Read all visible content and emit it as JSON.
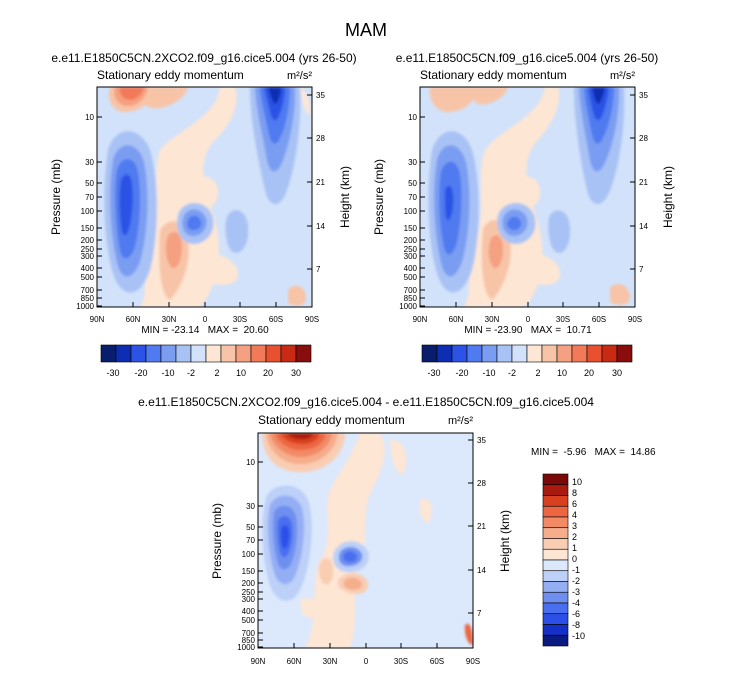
{
  "figure_title": "MAM",
  "colors": {
    "full_palette": [
      "#081d6b",
      "#0d2eb3",
      "#2c52e6",
      "#4f7af0",
      "#7a9df2",
      "#a9c2f5",
      "#d2e2fa",
      "#fde6d4",
      "#f8c4a7",
      "#f5a080",
      "#f27a58",
      "#e8502f",
      "#c82a14",
      "#8a0d0d"
    ],
    "diff_palette": [
      "#0a1a80",
      "#1530c8",
      "#2c4fe8",
      "#4a6ef0",
      "#6e8ff0",
      "#94aef4",
      "#bcd0f8",
      "#dce8fc",
      "#fde6d4",
      "#f9cdb2",
      "#f6ad8c",
      "#f28a66",
      "#ec6642",
      "#d8401f",
      "#a81a0e",
      "#7a0a0a"
    ]
  },
  "chart_data": [
    {
      "type": "contour",
      "title": "e.e11.E1850C5CN.2XCO2.f09_g16.cice5.004 (yrs 26-50)",
      "subtitle_left": "Stationary eddy momentum",
      "units": "m²/s²",
      "xlabel": "",
      "ylabel": "Pressure (mb)",
      "ylabel_right": "Height (km)",
      "x_ticks": [
        "90N",
        "60N",
        "30N",
        "0",
        "30S",
        "60S",
        "90S"
      ],
      "y_ticks": [
        "10",
        "30",
        "50",
        "70",
        "100",
        "150",
        "200",
        "250",
        "300",
        "400",
        "500",
        "700",
        "850",
        "1000"
      ],
      "y_ticks_right": [
        "35",
        "28",
        "21",
        "14",
        "7"
      ],
      "stats": "MIN = -23.14   MAX =  20.60",
      "colorbar_labels": [
        "-30",
        "-20",
        "-10",
        "-2",
        "2",
        "10",
        "20",
        "30"
      ]
    },
    {
      "type": "contour",
      "title": "e.e11.E1850C5CN.f09_g16.cice5.004 (yrs 26-50)",
      "subtitle_left": "Stationary eddy momentum",
      "units": "m²/s²",
      "xlabel": "",
      "ylabel": "Pressure (mb)",
      "ylabel_right": "Height (km)",
      "x_ticks": [
        "90N",
        "60N",
        "30N",
        "0",
        "30S",
        "60S",
        "90S"
      ],
      "y_ticks": [
        "10",
        "30",
        "50",
        "70",
        "100",
        "150",
        "200",
        "250",
        "300",
        "400",
        "500",
        "700",
        "850",
        "1000"
      ],
      "y_ticks_right": [
        "35",
        "28",
        "21",
        "14",
        "7"
      ],
      "stats": "MIN = -23.90   MAX =  10.71",
      "colorbar_labels": [
        "-30",
        "-20",
        "-10",
        "-2",
        "2",
        "10",
        "20",
        "30"
      ]
    },
    {
      "type": "contour",
      "title": "e.e11.E1850C5CN.2XCO2.f09_g16.cice5.004 - e.e11.E1850C5CN.f09_g16.cice5.004",
      "subtitle_left": "Stationary eddy momentum",
      "units": "m²/s²",
      "xlabel": "",
      "ylabel": "Pressure (mb)",
      "ylabel_right": "Height (km)",
      "x_ticks": [
        "90N",
        "60N",
        "30N",
        "0",
        "30S",
        "60S",
        "90S"
      ],
      "y_ticks": [
        "10",
        "30",
        "50",
        "70",
        "100",
        "150",
        "200",
        "250",
        "300",
        "400",
        "500",
        "700",
        "850",
        "1000"
      ],
      "y_ticks_right": [
        "35",
        "28",
        "21",
        "14",
        "7"
      ],
      "stats": "MIN =  -5.96   MAX =  14.86",
      "colorbar_labels": [
        "10",
        "8",
        "6",
        "4",
        "3",
        "2",
        "1",
        "0",
        "-1",
        "-2",
        "-3",
        "-4",
        "-6",
        "-8",
        "-10"
      ]
    }
  ]
}
